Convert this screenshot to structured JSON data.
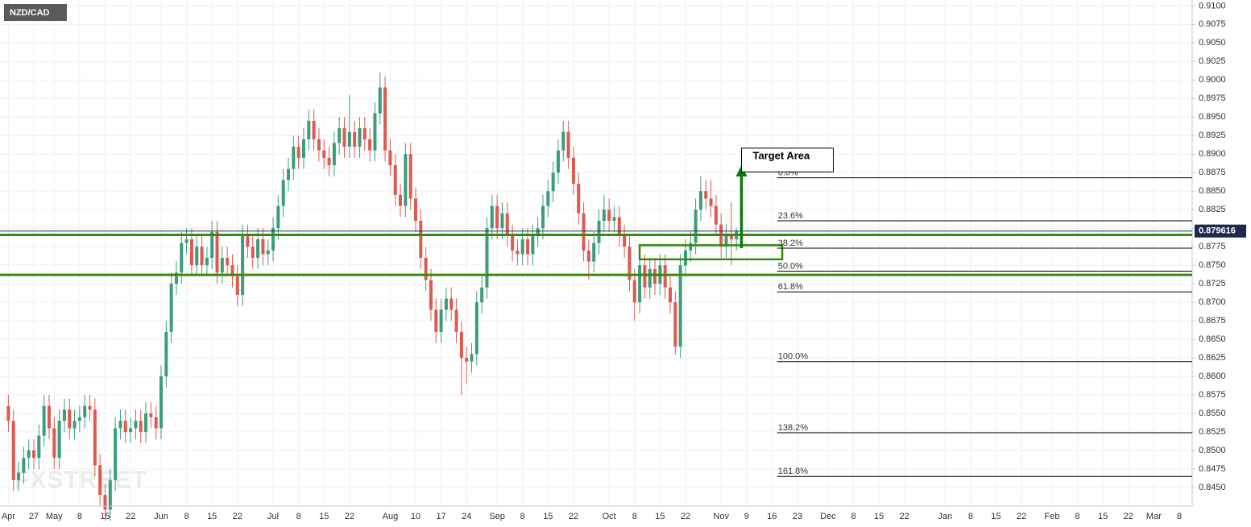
{
  "chart_data": {
    "type": "candlestick",
    "title": "NZD/CAD",
    "watermark": "FXSTREET",
    "up_color": "#3c9c7c",
    "down_color": "#dc5a52",
    "grid": true,
    "ylim": [
      0.8425,
      0.9108
    ],
    "yticks": [
      {
        "value": 0.845,
        "label": "0.8450"
      },
      0.8475,
      {
        "value": 0.85,
        "label": "0.8500"
      },
      0.8525,
      {
        "value": 0.855,
        "label": "0.8550"
      },
      0.8575,
      {
        "value": 0.86,
        "label": "0.8600"
      },
      0.8625,
      {
        "value": 0.865,
        "label": "0.8650"
      },
      0.8675,
      {
        "value": 0.87,
        "label": "0.8700"
      },
      0.8725,
      {
        "value": 0.875,
        "label": "0.8750"
      },
      0.8775,
      {
        "value": 0.88,
        "label": "0.8800"
      },
      0.8825,
      {
        "value": 0.885,
        "label": "0.8850"
      },
      0.8875,
      {
        "value": 0.89,
        "label": "0.8900"
      },
      0.8925,
      {
        "value": 0.895,
        "label": "0.8950"
      },
      0.8975,
      {
        "value": 0.9,
        "label": "0.9000"
      },
      0.9025,
      {
        "value": 0.905,
        "label": "0.9050"
      },
      0.9075,
      {
        "value": 0.91,
        "label": "0.9100"
      }
    ],
    "xticks": [
      {
        "value": "04-20",
        "label": "Apr"
      },
      {
        "value": "04-27",
        "label": "27"
      },
      {
        "value": "05-01",
        "label": "May"
      },
      {
        "value": "05-08",
        "label": "8"
      },
      {
        "value": "05-15",
        "label": "15"
      },
      {
        "value": "05-22",
        "label": "22"
      },
      {
        "value": "06-01",
        "label": "Jun"
      },
      {
        "value": "06-08",
        "label": "8"
      },
      {
        "value": "06-15",
        "label": "15"
      },
      {
        "value": "06-22",
        "label": "22"
      },
      {
        "value": "07-01",
        "label": "Jul"
      },
      {
        "value": "07-08",
        "label": "8"
      },
      {
        "value": "07-15",
        "label": "15"
      },
      {
        "value": "07-22",
        "label": "22"
      },
      {
        "value": "08-03",
        "label": "Aug"
      },
      {
        "value": "08-10",
        "label": "10"
      },
      {
        "value": "08-17",
        "label": "17"
      },
      {
        "value": "08-24",
        "label": "24"
      },
      {
        "value": "09-01",
        "label": "Sep"
      },
      {
        "value": "09-08",
        "label": "8"
      },
      {
        "value": "09-15",
        "label": "15"
      },
      {
        "value": "09-22",
        "label": "22"
      },
      {
        "value": "10-01",
        "label": "Oct"
      },
      {
        "value": "10-08",
        "label": "8"
      },
      {
        "value": "10-15",
        "label": "15"
      },
      {
        "value": "10-22",
        "label": "22"
      },
      {
        "value": "11-02",
        "label": "Nov"
      },
      {
        "value": "11-09",
        "label": "9"
      },
      {
        "value": "11-16",
        "label": "16"
      },
      {
        "value": "11-23",
        "label": "23"
      },
      {
        "value": "12-01",
        "label": "Dec"
      },
      {
        "value": "12-08",
        "label": "8"
      },
      {
        "value": "12-15",
        "label": "15"
      },
      {
        "value": "12-22",
        "label": "22"
      },
      {
        "value": "01-01",
        "label": "Jan"
      },
      {
        "value": "01-08",
        "label": "8"
      },
      {
        "value": "01-15",
        "label": "15"
      },
      {
        "value": "01-22",
        "label": "22"
      },
      {
        "value": "02-01",
        "label": "Feb"
      },
      {
        "value": "02-08",
        "label": "8"
      },
      {
        "value": "02-15",
        "label": "15"
      },
      {
        "value": "02-22",
        "label": "22"
      },
      {
        "value": "03-01",
        "label": "Mar"
      },
      {
        "value": "03-08",
        "label": "8"
      }
    ],
    "x": [
      "04-20",
      "04-21",
      "04-22",
      "04-23",
      "04-24",
      "04-27",
      "04-28",
      "04-29",
      "04-30",
      "05-01",
      "05-04",
      "05-05",
      "05-06",
      "05-07",
      "05-08",
      "05-11",
      "05-12",
      "05-13",
      "05-14",
      "05-15",
      "05-18",
      "05-19",
      "05-20",
      "05-21",
      "05-22",
      "05-25",
      "05-26",
      "05-27",
      "05-28",
      "05-29",
      "06-01",
      "06-02",
      "06-03",
      "06-04",
      "06-05",
      "06-08",
      "06-09",
      "06-10",
      "06-11",
      "06-12",
      "06-15",
      "06-16",
      "06-17",
      "06-18",
      "06-19",
      "06-22",
      "06-23",
      "06-24",
      "06-25",
      "06-26",
      "06-29",
      "06-30",
      "07-01",
      "07-02",
      "07-03",
      "07-06",
      "07-07",
      "07-08",
      "07-09",
      "07-10",
      "07-13",
      "07-14",
      "07-15",
      "07-16",
      "07-17",
      "07-20",
      "07-21",
      "07-22",
      "07-23",
      "07-24",
      "07-27",
      "07-28",
      "07-29",
      "07-30",
      "07-31",
      "08-03",
      "08-04",
      "08-05",
      "08-06",
      "08-07",
      "08-10",
      "08-11",
      "08-12",
      "08-13",
      "08-14",
      "08-17",
      "08-18",
      "08-19",
      "08-20",
      "08-21",
      "08-24",
      "08-25",
      "08-26",
      "08-27",
      "08-28",
      "08-31",
      "09-01",
      "09-02",
      "09-03",
      "09-04",
      "09-07",
      "09-08",
      "09-09",
      "09-10",
      "09-11",
      "09-14",
      "09-15",
      "09-16",
      "09-17",
      "09-18",
      "09-21",
      "09-22",
      "09-23",
      "09-24",
      "09-25",
      "09-28",
      "09-29",
      "09-30",
      "10-01",
      "10-02",
      "10-05",
      "10-06",
      "10-07",
      "10-08",
      "10-09",
      "10-12",
      "10-13",
      "10-14",
      "10-15",
      "10-16",
      "10-19",
      "10-20",
      "10-21",
      "10-22",
      "10-23",
      "10-26",
      "10-27",
      "10-28",
      "10-29",
      "10-30",
      "11-02",
      "11-03",
      "11-04",
      "11-05"
    ],
    "candles": [
      [
        0.856,
        0.8575,
        0.8525,
        0.854
      ],
      [
        0.854,
        0.8555,
        0.8445,
        0.846
      ],
      [
        0.846,
        0.8485,
        0.8445,
        0.847
      ],
      [
        0.847,
        0.8505,
        0.8455,
        0.849
      ],
      [
        0.849,
        0.8515,
        0.8475,
        0.85
      ],
      [
        0.85,
        0.8515,
        0.8475,
        0.849
      ],
      [
        0.849,
        0.8535,
        0.8475,
        0.852
      ],
      [
        0.852,
        0.8575,
        0.8505,
        0.856
      ],
      [
        0.856,
        0.8575,
        0.8515,
        0.853
      ],
      [
        0.853,
        0.8545,
        0.8475,
        0.849
      ],
      [
        0.849,
        0.8555,
        0.8475,
        0.854
      ],
      [
        0.854,
        0.857,
        0.8525,
        0.8555
      ],
      [
        0.8555,
        0.857,
        0.8515,
        0.853
      ],
      [
        0.853,
        0.8555,
        0.8515,
        0.854
      ],
      [
        0.854,
        0.856,
        0.8525,
        0.8545
      ],
      [
        0.8545,
        0.8575,
        0.853,
        0.856
      ],
      [
        0.856,
        0.8575,
        0.854,
        0.8555
      ],
      [
        0.8555,
        0.857,
        0.8465,
        0.848
      ],
      [
        0.848,
        0.8495,
        0.8425,
        0.844
      ],
      [
        0.844,
        0.8455,
        0.8405,
        0.842
      ],
      [
        0.842,
        0.8475,
        0.8405,
        0.846
      ],
      [
        0.846,
        0.8545,
        0.8445,
        0.853
      ],
      [
        0.853,
        0.8555,
        0.8515,
        0.854
      ],
      [
        0.854,
        0.8555,
        0.851,
        0.8525
      ],
      [
        0.8525,
        0.8545,
        0.851,
        0.853
      ],
      [
        0.853,
        0.8555,
        0.8515,
        0.854
      ],
      [
        0.854,
        0.8555,
        0.851,
        0.8525
      ],
      [
        0.8525,
        0.8565,
        0.851,
        0.855
      ],
      [
        0.855,
        0.8565,
        0.853,
        0.8545
      ],
      [
        0.8545,
        0.856,
        0.8515,
        0.853
      ],
      [
        0.853,
        0.8615,
        0.8515,
        0.86
      ],
      [
        0.86,
        0.8675,
        0.8585,
        0.866
      ],
      [
        0.866,
        0.874,
        0.8645,
        0.8725
      ],
      [
        0.8725,
        0.8755,
        0.871,
        0.874
      ],
      [
        0.874,
        0.8795,
        0.8725,
        0.878
      ],
      [
        0.878,
        0.88,
        0.8765,
        0.8785
      ],
      [
        0.8785,
        0.88,
        0.8735,
        0.875
      ],
      [
        0.875,
        0.879,
        0.8735,
        0.8775
      ],
      [
        0.8775,
        0.879,
        0.8735,
        0.875
      ],
      [
        0.875,
        0.8775,
        0.8735,
        0.876
      ],
      [
        0.876,
        0.881,
        0.8745,
        0.8795
      ],
      [
        0.8795,
        0.881,
        0.8725,
        0.874
      ],
      [
        0.874,
        0.8775,
        0.8725,
        0.876
      ],
      [
        0.876,
        0.8775,
        0.8735,
        0.875
      ],
      [
        0.875,
        0.8765,
        0.872,
        0.8735
      ],
      [
        0.8735,
        0.875,
        0.8695,
        0.871
      ],
      [
        0.871,
        0.8805,
        0.8695,
        0.879
      ],
      [
        0.879,
        0.8805,
        0.876,
        0.8775
      ],
      [
        0.8775,
        0.879,
        0.8745,
        0.876
      ],
      [
        0.876,
        0.88,
        0.8745,
        0.8785
      ],
      [
        0.8785,
        0.88,
        0.875,
        0.8765
      ],
      [
        0.8765,
        0.8785,
        0.875,
        0.877
      ],
      [
        0.877,
        0.8815,
        0.8755,
        0.88
      ],
      [
        0.88,
        0.8845,
        0.8785,
        0.883
      ],
      [
        0.883,
        0.888,
        0.8815,
        0.8865
      ],
      [
        0.8865,
        0.8895,
        0.885,
        0.888
      ],
      [
        0.888,
        0.8925,
        0.8865,
        0.891
      ],
      [
        0.891,
        0.8925,
        0.888,
        0.8895
      ],
      [
        0.8895,
        0.8935,
        0.888,
        0.892
      ],
      [
        0.892,
        0.896,
        0.8905,
        0.8945
      ],
      [
        0.8945,
        0.896,
        0.8905,
        0.892
      ],
      [
        0.892,
        0.8935,
        0.889,
        0.8905
      ],
      [
        0.8905,
        0.892,
        0.888,
        0.8895
      ],
      [
        0.8895,
        0.891,
        0.887,
        0.8885
      ],
      [
        0.8885,
        0.893,
        0.887,
        0.8915
      ],
      [
        0.8915,
        0.895,
        0.89,
        0.8935
      ],
      [
        0.8935,
        0.895,
        0.8895,
        0.891
      ],
      [
        0.891,
        0.898,
        0.8895,
        0.893
      ],
      [
        0.893,
        0.8945,
        0.8895,
        0.891
      ],
      [
        0.891,
        0.895,
        0.8895,
        0.8935
      ],
      [
        0.8935,
        0.895,
        0.8905,
        0.892
      ],
      [
        0.892,
        0.8935,
        0.889,
        0.8905
      ],
      [
        0.8905,
        0.897,
        0.889,
        0.8955
      ],
      [
        0.8955,
        0.901,
        0.894,
        0.899
      ],
      [
        0.899,
        0.9005,
        0.889,
        0.8905
      ],
      [
        0.8905,
        0.892,
        0.887,
        0.8885
      ],
      [
        0.8885,
        0.89,
        0.883,
        0.8845
      ],
      [
        0.8845,
        0.886,
        0.8815,
        0.883
      ],
      [
        0.883,
        0.8915,
        0.8815,
        0.89
      ],
      [
        0.89,
        0.8915,
        0.8825,
        0.884
      ],
      [
        0.884,
        0.8855,
        0.8795,
        0.881
      ],
      [
        0.881,
        0.8825,
        0.8745,
        0.876
      ],
      [
        0.876,
        0.8775,
        0.8715,
        0.873
      ],
      [
        0.873,
        0.8745,
        0.8675,
        0.869
      ],
      [
        0.869,
        0.8705,
        0.8645,
        0.866
      ],
      [
        0.866,
        0.8705,
        0.8645,
        0.869
      ],
      [
        0.869,
        0.872,
        0.8675,
        0.8705
      ],
      [
        0.8705,
        0.872,
        0.8675,
        0.869
      ],
      [
        0.869,
        0.8705,
        0.8645,
        0.866
      ],
      [
        0.866,
        0.8675,
        0.8575,
        0.8625
      ],
      [
        0.8625,
        0.864,
        0.859,
        0.862
      ],
      [
        0.862,
        0.8645,
        0.8605,
        0.863
      ],
      [
        0.863,
        0.8715,
        0.8615,
        0.87
      ],
      [
        0.87,
        0.8735,
        0.8685,
        0.872
      ],
      [
        0.872,
        0.8815,
        0.8705,
        0.88
      ],
      [
        0.88,
        0.8845,
        0.8785,
        0.883
      ],
      [
        0.883,
        0.8845,
        0.8785,
        0.88
      ],
      [
        0.88,
        0.8835,
        0.8785,
        0.882
      ],
      [
        0.882,
        0.8835,
        0.8775,
        0.879
      ],
      [
        0.879,
        0.8805,
        0.8755,
        0.877
      ],
      [
        0.877,
        0.8785,
        0.875,
        0.8765
      ],
      [
        0.8765,
        0.88,
        0.875,
        0.8785
      ],
      [
        0.8785,
        0.88,
        0.875,
        0.8765
      ],
      [
        0.8765,
        0.8805,
        0.875,
        0.879
      ],
      [
        0.879,
        0.8815,
        0.8775,
        0.88
      ],
      [
        0.88,
        0.8845,
        0.8785,
        0.883
      ],
      [
        0.883,
        0.8865,
        0.8815,
        0.885
      ],
      [
        0.885,
        0.889,
        0.8835,
        0.8875
      ],
      [
        0.8875,
        0.892,
        0.886,
        0.8905
      ],
      [
        0.8905,
        0.8945,
        0.889,
        0.893
      ],
      [
        0.893,
        0.8945,
        0.888,
        0.8895
      ],
      [
        0.8895,
        0.891,
        0.8845,
        0.886
      ],
      [
        0.886,
        0.8875,
        0.8805,
        0.882
      ],
      [
        0.882,
        0.8835,
        0.8755,
        0.877
      ],
      [
        0.877,
        0.8785,
        0.873,
        0.8755
      ],
      [
        0.8755,
        0.8795,
        0.874,
        0.878
      ],
      [
        0.878,
        0.8825,
        0.8765,
        0.881
      ],
      [
        0.881,
        0.8845,
        0.8795,
        0.8825
      ],
      [
        0.8825,
        0.884,
        0.8795,
        0.881
      ],
      [
        0.881,
        0.883,
        0.8795,
        0.8815
      ],
      [
        0.8815,
        0.883,
        0.8775,
        0.879
      ],
      [
        0.879,
        0.8805,
        0.876,
        0.8775
      ],
      [
        0.8775,
        0.879,
        0.8715,
        0.873
      ],
      [
        0.873,
        0.8745,
        0.8675,
        0.87
      ],
      [
        0.87,
        0.8765,
        0.8685,
        0.875
      ],
      [
        0.875,
        0.8765,
        0.8705,
        0.872
      ],
      [
        0.872,
        0.876,
        0.8705,
        0.8745
      ],
      [
        0.8745,
        0.876,
        0.871,
        0.8725
      ],
      [
        0.8725,
        0.8765,
        0.871,
        0.875
      ],
      [
        0.875,
        0.8765,
        0.8705,
        0.872
      ],
      [
        0.872,
        0.8735,
        0.8685,
        0.87
      ],
      [
        0.87,
        0.8715,
        0.863,
        0.864
      ],
      [
        0.864,
        0.8765,
        0.8625,
        0.875
      ],
      [
        0.875,
        0.8785,
        0.8735,
        0.877
      ],
      [
        0.877,
        0.8795,
        0.8755,
        0.878
      ],
      [
        0.878,
        0.884,
        0.8765,
        0.8825
      ],
      [
        0.8825,
        0.887,
        0.881,
        0.885
      ],
      [
        0.885,
        0.8865,
        0.8825,
        0.884
      ],
      [
        0.884,
        0.8865,
        0.8815,
        0.883
      ],
      [
        0.883,
        0.8845,
        0.879,
        0.8805
      ],
      [
        0.8805,
        0.882,
        0.876,
        0.8775
      ],
      [
        0.8775,
        0.8805,
        0.876,
        0.879
      ],
      [
        0.879,
        0.8835,
        0.875,
        0.8785
      ],
      [
        0.8785,
        0.88,
        0.877,
        0.8796
      ]
    ],
    "last_price": 0.879616,
    "support_lines": [
      0.8791,
      0.8737
    ],
    "zone": {
      "from": "10-09",
      "to": "11-18",
      "low": 0.8758,
      "high": 0.8777
    },
    "fib_from": "11-17",
    "fib_levels": [
      {
        "label": "0.0%",
        "value": 0.8868
      },
      {
        "label": "23.6%",
        "value": 0.881
      },
      {
        "label": "38.2%",
        "value": 0.8773
      },
      {
        "label": "50.0%",
        "value": 0.8742
      },
      {
        "label": "61.8%",
        "value": 0.8714
      },
      {
        "label": "100.0%",
        "value": 0.862
      },
      {
        "label": "138.2%",
        "value": 0.8524
      },
      {
        "label": "161.8%",
        "value": 0.8465
      }
    ],
    "arrow": {
      "date": "11-06",
      "from": 0.8773,
      "to": 0.8885
    },
    "target": {
      "label": "Target Area",
      "date": "11-06",
      "top": 0.8908,
      "bottom": 0.8876
    }
  }
}
